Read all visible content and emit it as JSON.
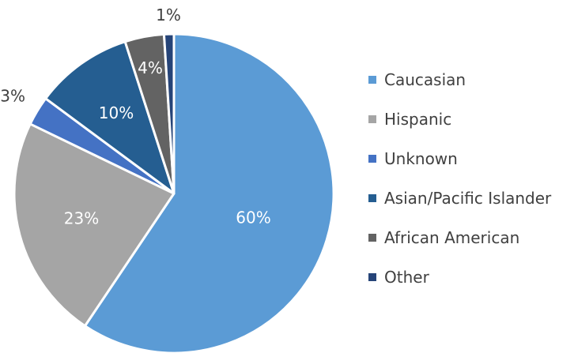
{
  "chart_data": {
    "type": "pie",
    "title": "",
    "slices": [
      {
        "label": "Caucasian",
        "value": 60,
        "display": "60%",
        "color": "#5b9bd5"
      },
      {
        "label": "Hispanic",
        "value": 23,
        "display": "23%",
        "color": "#a5a5a5"
      },
      {
        "label": "Unknown",
        "value": 3,
        "display": "3%",
        "color": "#4472c4"
      },
      {
        "label": "Asian/Pacific Islander",
        "value": 10,
        "display": "10%",
        "color": "#255e91"
      },
      {
        "label": "African American",
        "value": 4,
        "display": "4%",
        "color": "#636363"
      },
      {
        "label": "Other",
        "value": 1,
        "display": "1%",
        "color": "#264478"
      }
    ],
    "start": "12 o'clock",
    "direction": "clockwise",
    "legend": {
      "position": "right",
      "entries": [
        "Caucasian",
        "Hispanic",
        "Unknown",
        "Asian/Pacific Islander",
        "African American",
        "Other"
      ]
    }
  }
}
